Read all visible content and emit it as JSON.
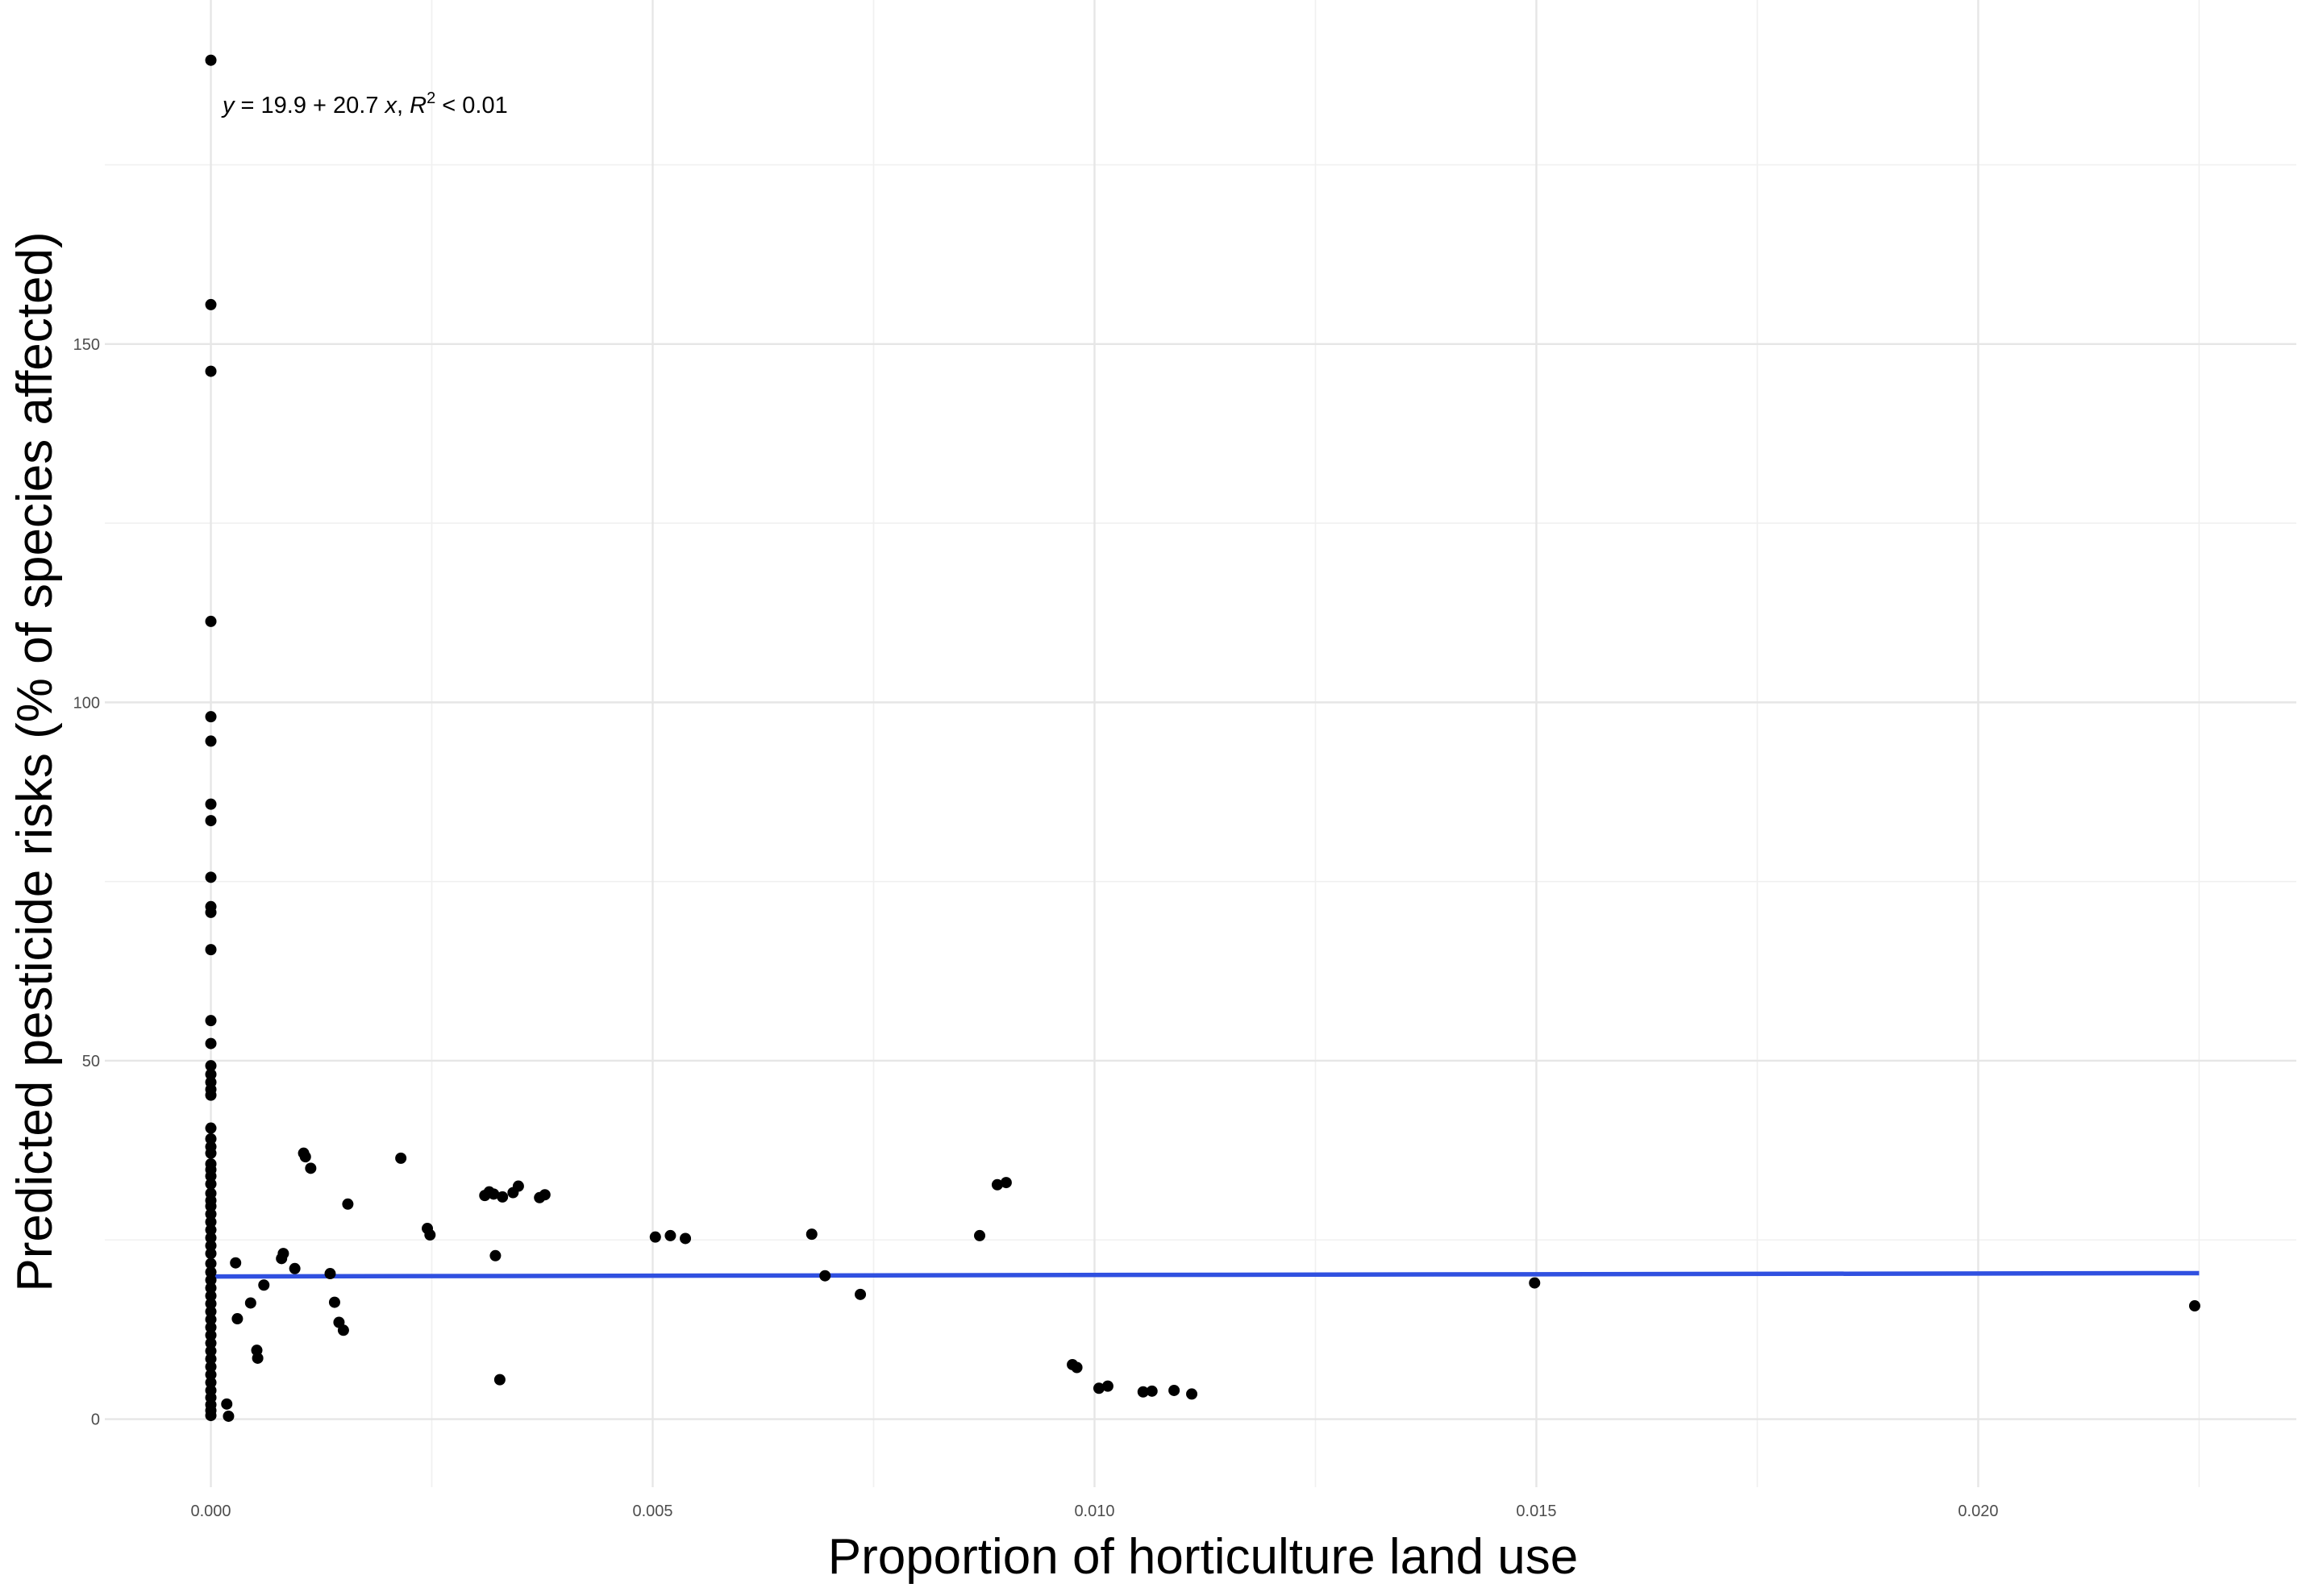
{
  "chart_data": {
    "type": "scatter",
    "xlabel": "Proportion of horticulture land use",
    "ylabel": "Predicted pesticide risks (% of species affected)",
    "xlim": [
      -0.0012,
      0.0236
    ],
    "ylim": [
      -9.5,
      198
    ],
    "x_ticks": [
      0.0,
      0.005,
      0.01,
      0.015,
      0.02
    ],
    "x_tick_labels": [
      "0.000",
      "0.005",
      "0.010",
      "0.015",
      "0.020"
    ],
    "y_ticks": [
      0,
      50,
      100,
      150
    ],
    "y_tick_labels": [
      "0",
      "50",
      "100",
      "150"
    ],
    "grid": true,
    "annotation": {
      "equation": "y = 19.9 + 20.7 x, R",
      "r2_superscript": "2",
      "r2_value": " < 0.01",
      "full_text": "y = 19.9 + 20.7 x, R2 < 0.01"
    },
    "trend_line": {
      "intercept": 19.9,
      "slope": 20.7,
      "x_range": [
        0.0,
        0.0225
      ],
      "color": "#3050e0"
    },
    "point_color": "#000000",
    "points": [
      [
        0.0,
        189.6
      ],
      [
        0.0,
        155.5
      ],
      [
        0.0,
        146.2
      ],
      [
        0.0,
        111.3
      ],
      [
        0.0,
        98.0
      ],
      [
        0.0,
        94.6
      ],
      [
        0.0,
        85.8
      ],
      [
        0.0,
        83.5
      ],
      [
        0.0,
        75.6
      ],
      [
        0.0,
        71.5
      ],
      [
        0.0,
        70.7
      ],
      [
        0.0,
        65.5
      ],
      [
        0.0,
        55.6
      ],
      [
        0.0,
        52.4
      ],
      [
        0.0,
        49.3
      ],
      [
        0.0,
        48.1
      ],
      [
        0.0,
        47.0
      ],
      [
        0.0,
        46.0
      ],
      [
        0.0,
        45.2
      ],
      [
        0.0,
        40.6
      ],
      [
        0.0,
        39.1
      ],
      [
        0.0,
        38.0
      ],
      [
        0.0,
        37.1
      ],
      [
        0.0,
        35.6
      ],
      [
        0.0,
        34.8
      ],
      [
        0.0,
        33.9
      ],
      [
        0.0,
        32.8
      ],
      [
        0.0,
        31.5
      ],
      [
        0.0,
        30.5
      ],
      [
        0.0,
        29.7
      ],
      [
        0.0,
        28.6
      ],
      [
        0.0,
        27.5
      ],
      [
        0.0,
        26.4
      ],
      [
        0.0,
        25.3
      ],
      [
        0.0,
        24.2
      ],
      [
        0.0,
        23.1
      ],
      [
        0.0,
        21.7
      ],
      [
        0.0,
        20.5
      ],
      [
        0.0,
        19.4
      ],
      [
        0.0,
        18.3
      ],
      [
        0.0,
        17.2
      ],
      [
        0.0,
        16.1
      ],
      [
        0.0,
        15.0
      ],
      [
        0.0,
        13.9
      ],
      [
        0.0,
        12.8
      ],
      [
        0.0,
        11.7
      ],
      [
        0.0,
        10.6
      ],
      [
        0.0,
        9.5
      ],
      [
        0.0,
        8.4
      ],
      [
        0.0,
        7.3
      ],
      [
        0.0,
        6.2
      ],
      [
        0.0,
        5.1
      ],
      [
        0.0,
        4.0
      ],
      [
        0.0,
        3.0
      ],
      [
        0.0,
        2.0
      ],
      [
        0.0,
        1.2
      ],
      [
        0.0,
        0.5
      ],
      [
        0.00018,
        2.1
      ],
      [
        0.0002,
        0.4
      ],
      [
        0.00028,
        21.8
      ],
      [
        0.0003,
        14.0
      ],
      [
        0.00045,
        16.2
      ],
      [
        0.00052,
        9.6
      ],
      [
        0.00053,
        8.5
      ],
      [
        0.0006,
        18.7
      ],
      [
        0.0008,
        22.4
      ],
      [
        0.00082,
        23.1
      ],
      [
        0.00095,
        21.0
      ],
      [
        0.00105,
        37.1
      ],
      [
        0.00107,
        36.6
      ],
      [
        0.00113,
        35.0
      ],
      [
        0.00135,
        20.3
      ],
      [
        0.0014,
        16.3
      ],
      [
        0.00145,
        13.5
      ],
      [
        0.0015,
        12.4
      ],
      [
        0.00155,
        30.0
      ],
      [
        0.00215,
        36.4
      ],
      [
        0.00245,
        26.6
      ],
      [
        0.00248,
        25.7
      ],
      [
        0.0031,
        31.2
      ],
      [
        0.00315,
        31.7
      ],
      [
        0.0032,
        31.4
      ],
      [
        0.00322,
        22.8
      ],
      [
        0.00327,
        5.5
      ],
      [
        0.0033,
        31.0
      ],
      [
        0.00342,
        31.6
      ],
      [
        0.00348,
        32.5
      ],
      [
        0.00372,
        30.9
      ],
      [
        0.00378,
        31.3
      ],
      [
        0.00503,
        25.4
      ],
      [
        0.0052,
        25.6
      ],
      [
        0.00537,
        25.2
      ],
      [
        0.0068,
        25.8
      ],
      [
        0.00695,
        20.0
      ],
      [
        0.00735,
        17.4
      ],
      [
        0.0087,
        25.6
      ],
      [
        0.0089,
        32.7
      ],
      [
        0.009,
        33.0
      ],
      [
        0.00975,
        7.6
      ],
      [
        0.0098,
        7.2
      ],
      [
        0.01005,
        4.3
      ],
      [
        0.01015,
        4.6
      ],
      [
        0.01055,
        3.8
      ],
      [
        0.01065,
        3.9
      ],
      [
        0.0109,
        4.0
      ],
      [
        0.0111,
        3.5
      ],
      [
        0.01498,
        19.0
      ],
      [
        0.02245,
        15.8
      ]
    ]
  }
}
